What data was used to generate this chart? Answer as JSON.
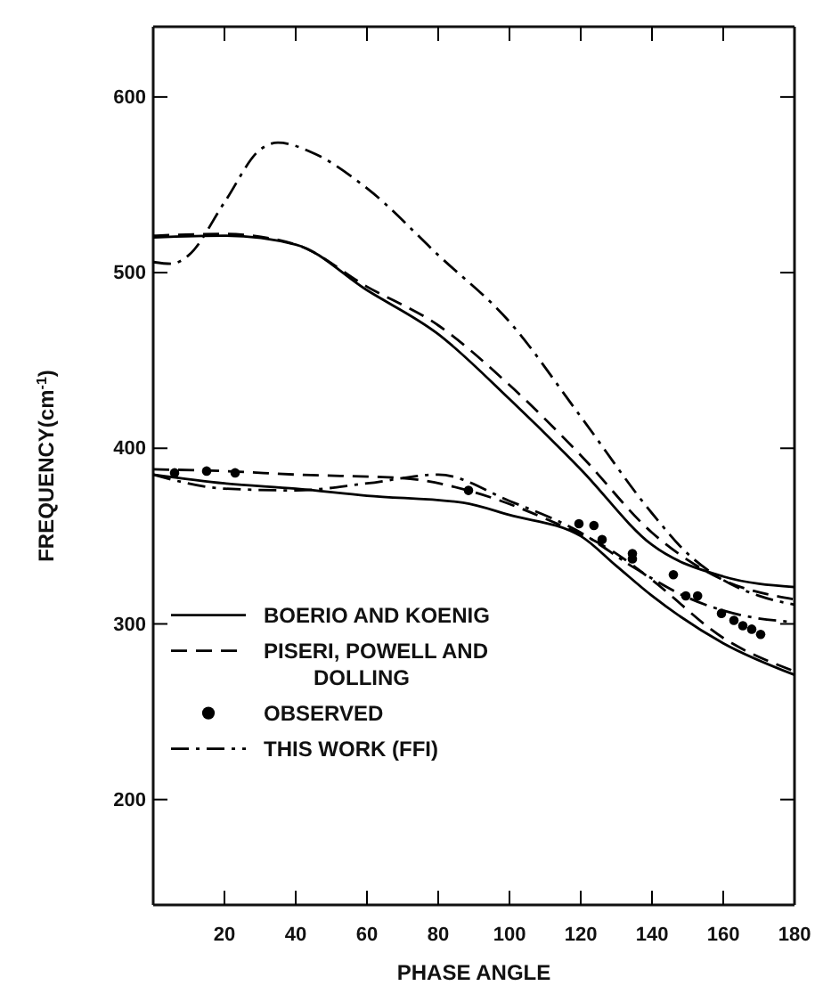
{
  "chart_data": {
    "type": "line",
    "xlabel": "PHASE ANGLE",
    "ylabel": "FREQUENCY(cm$^{-1}$)",
    "xlim": [
      0,
      180
    ],
    "ylim": [
      140,
      640
    ],
    "xticks": [
      20,
      40,
      60,
      80,
      100,
      120,
      140,
      160,
      180
    ],
    "yticks": [
      200,
      300,
      400,
      500,
      600
    ],
    "legend": "left",
    "grid": false,
    "series": [
      {
        "name": "BOERIO AND KOENIG",
        "color": "#000000",
        "line_style": "solid",
        "x": [
          0,
          20,
          40,
          60,
          80,
          100,
          120,
          140,
          160,
          180
        ],
        "values": [
          520,
          521,
          516,
          490,
          465,
          428,
          388,
          345,
          327,
          321
        ]
      },
      {
        "name": "PISERI, POWELL AND DOLLING",
        "color": "#000000",
        "line_style": "dashed",
        "x": [
          0,
          20,
          40,
          60,
          80,
          100,
          120,
          140,
          160,
          180
        ],
        "values": [
          521,
          522,
          516,
          492,
          470,
          436,
          396,
          352,
          325,
          314
        ]
      },
      {
        "name": "OBSERVED",
        "type": "scatter",
        "marker": "circle",
        "color": "#000000",
        "x": [
          6,
          15,
          23,
          88.5,
          119.5,
          123.7,
          126,
          134.5,
          134.5,
          146,
          149.5,
          152.8,
          159.5,
          163,
          165.5,
          168,
          170.5
        ],
        "values": [
          386,
          387,
          386,
          376,
          357,
          356,
          348,
          340,
          337,
          328,
          316,
          316,
          306,
          302,
          299,
          297,
          294
        ]
      },
      {
        "name": "THIS WORK (FFI)",
        "color": "#000000",
        "line_style": "dashdot",
        "x": [
          0,
          5,
          10,
          20,
          30,
          35,
          45,
          60,
          80,
          100,
          120,
          140,
          150,
          160,
          170,
          180
        ],
        "values": [
          506,
          505,
          510,
          540,
          570,
          574,
          568,
          548,
          510,
          472,
          418,
          363,
          340,
          325,
          316,
          311
        ]
      },
      {
        "color": "#000000",
        "line_style": "solid",
        "x": [
          0,
          20,
          40,
          60,
          87,
          100,
          120,
          130,
          140,
          160,
          180
        ],
        "values": [
          385,
          380,
          377,
          373,
          369,
          362,
          350,
          333,
          316,
          289,
          271
        ]
      },
      {
        "color": "#000000",
        "line_style": "dashed",
        "x": [
          0,
          20,
          40,
          70,
          90,
          110,
          130,
          140,
          160,
          180
        ],
        "values": [
          388,
          387,
          385,
          383,
          375,
          360,
          340,
          325,
          292,
          273
        ]
      },
      {
        "color": "#000000",
        "line_style": "dashdot",
        "x": [
          0,
          20,
          40,
          60,
          80,
          100,
          120,
          135,
          150,
          165,
          180
        ],
        "values": [
          385,
          377,
          376,
          380,
          385,
          370,
          352,
          332,
          315,
          305,
          301
        ]
      }
    ]
  }
}
